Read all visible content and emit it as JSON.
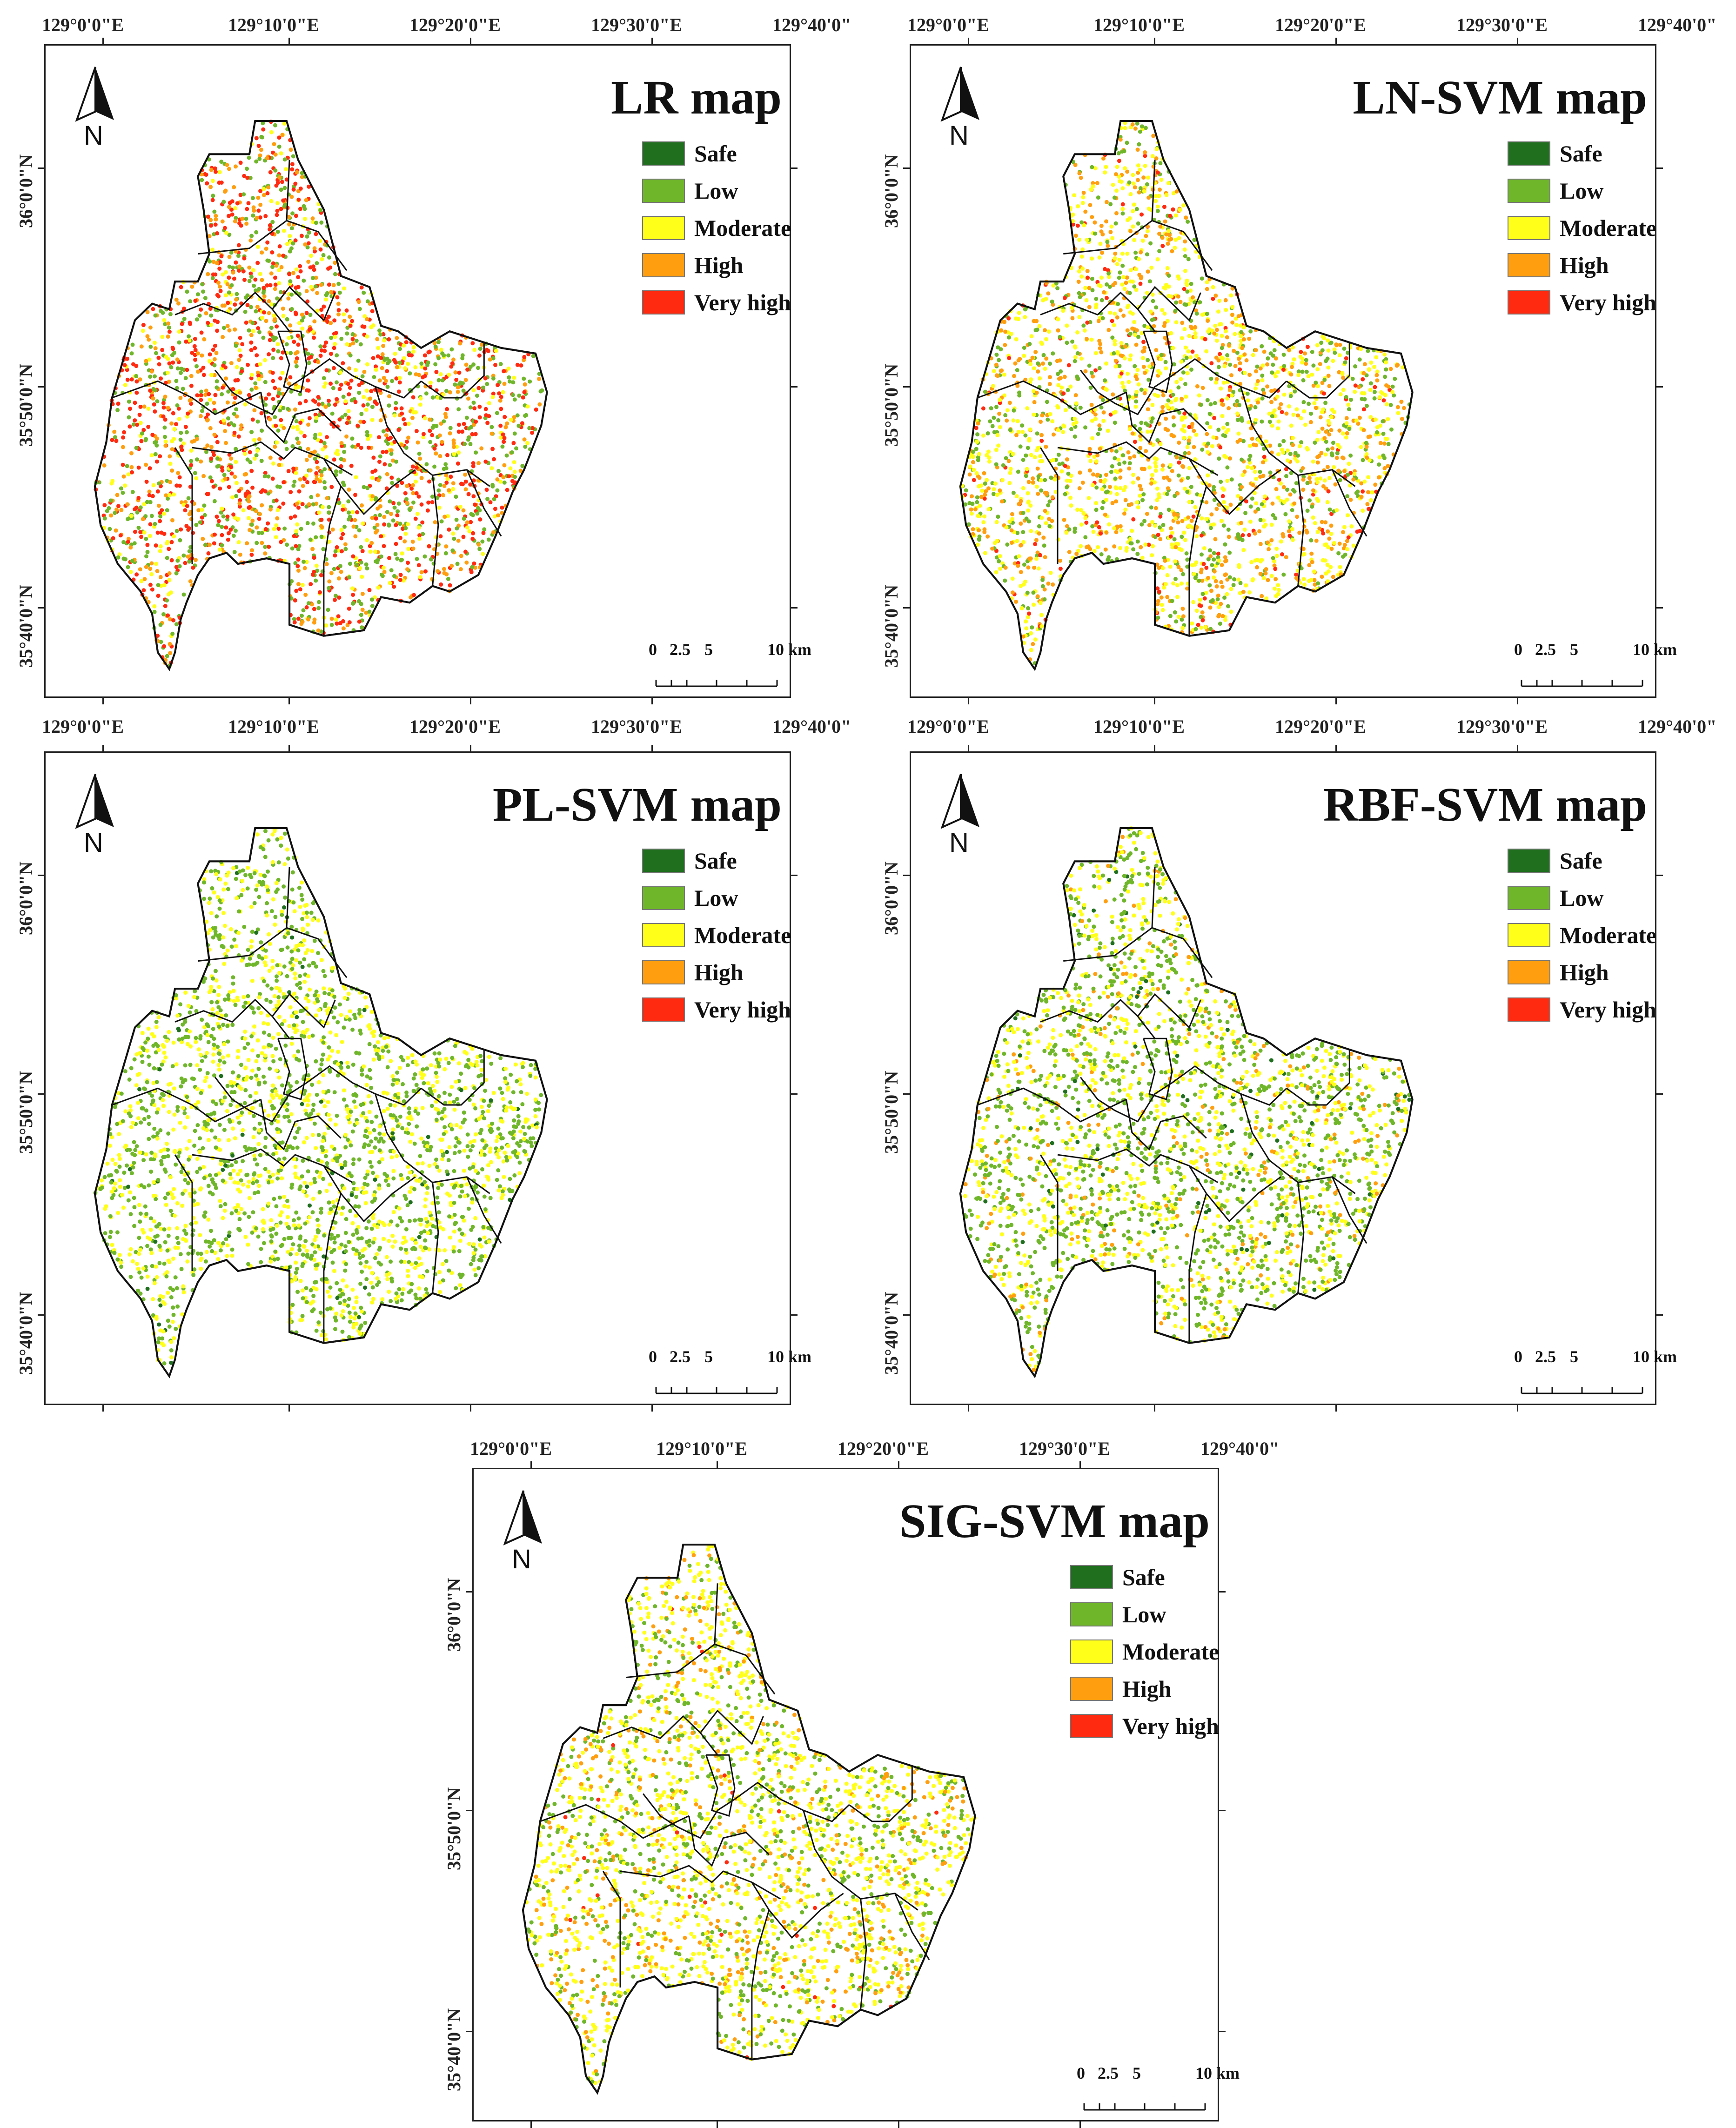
{
  "legend_items": [
    {
      "label": "Safe",
      "color": "#1f6f1f"
    },
    {
      "label": "Low",
      "color": "#6fb62a"
    },
    {
      "label": "Moderate",
      "color": "#ffff1a"
    },
    {
      "label": "High",
      "color": "#ff9f10"
    },
    {
      "label": "Very high",
      "color": "#ff2a10"
    }
  ],
  "north_label": "N",
  "scale_labels": [
    "0",
    "2.5",
    "5",
    "10 km"
  ],
  "panels": [
    {
      "title": "LR map",
      "top_lon_labels": [
        "129°0'0\"E",
        "129°10'0\"E",
        "129°20'0\"E",
        "129°30'0\"E",
        "129°40'0\""
      ],
      "bottom_lon_labels": [
        "129°0'0\"E",
        "129°10'0\"E",
        "129°20'0\"E",
        "129°30'0\"E",
        "129°40'0\""
      ],
      "lat_labels": [
        "36°0'0\"N",
        "35°50'0\"N",
        "35°40'0\"N"
      ],
      "point_mix": [
        0.0,
        0.28,
        0.14,
        0.24,
        0.34
      ]
    },
    {
      "title": "LN-SVM map",
      "top_lon_labels": [
        "129°0'0\"E",
        "129°10'0\"E",
        "129°20'0\"E",
        "129°30'0\"E",
        "129°40'0\""
      ],
      "bottom_lon_labels": [
        "129°0'0\"E",
        "129°10'0\"E",
        "129°20'0\"E",
        "129°30'0\"E",
        "129°40'0\""
      ],
      "lat_labels": [
        "36°0'0\"N",
        "35°50'0\"N",
        "35°40'0\"N"
      ],
      "point_mix": [
        0.0,
        0.26,
        0.38,
        0.3,
        0.06
      ]
    },
    {
      "title": "PL-SVM map",
      "top_lon_labels": [],
      "bottom_lon_labels": [],
      "lat_labels": [
        "36°0'0\"N",
        "35°50'0\"N",
        "35°40'0\"N"
      ],
      "point_mix": [
        0.02,
        0.55,
        0.43,
        0.0,
        0.0
      ]
    },
    {
      "title": "RBF-SVM map",
      "top_lon_labels": [],
      "bottom_lon_labels": [],
      "lat_labels": [
        "36°0'0\"N",
        "35°50'0\"N",
        "35°40'0\"N"
      ],
      "point_mix": [
        0.03,
        0.5,
        0.37,
        0.1,
        0.0
      ]
    },
    {
      "title": "SIG-SVM map",
      "top_lon_labels": [
        "129°0'0\"E",
        "129°10'0\"E",
        "129°20'0\"E",
        "129°30'0\"E",
        "129°40'0\""
      ],
      "bottom_lon_labels": [],
      "lat_labels": [
        "36°0'0\"N",
        "35°50'0\"N",
        "35°40'0\"N"
      ],
      "point_mix": [
        0.0,
        0.3,
        0.52,
        0.17,
        0.01
      ]
    }
  ]
}
